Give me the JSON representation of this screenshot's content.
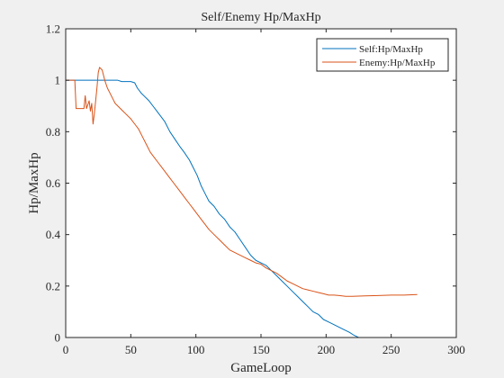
{
  "chart_data": {
    "type": "line",
    "title": "Self/Enemy Hp/MaxHp",
    "xlabel": "GameLoop",
    "ylabel": "Hp/MaxHp",
    "xlim": [
      0,
      300
    ],
    "ylim": [
      0,
      1.2
    ],
    "xticks": [
      "0",
      "50",
      "100",
      "150",
      "200",
      "250",
      "300"
    ],
    "yticks": [
      "0",
      "0.2",
      "0.4",
      "0.6",
      "0.8",
      "1",
      "1.2"
    ],
    "grid": false,
    "legend_position": "top-right",
    "series": [
      {
        "name": "Self:Hp/MaxHp",
        "color": "#0072BD",
        "points": [
          [
            0,
            1
          ],
          [
            10,
            1
          ],
          [
            20,
            1
          ],
          [
            30,
            1
          ],
          [
            40,
            1
          ],
          [
            43,
            0.995
          ],
          [
            50,
            0.995
          ],
          [
            53,
            0.99
          ],
          [
            55,
            0.97
          ],
          [
            58,
            0.95
          ],
          [
            60,
            0.94
          ],
          [
            64,
            0.92
          ],
          [
            67,
            0.9
          ],
          [
            70,
            0.88
          ],
          [
            73,
            0.86
          ],
          [
            76,
            0.84
          ],
          [
            80,
            0.8
          ],
          [
            84,
            0.77
          ],
          [
            88,
            0.74
          ],
          [
            91,
            0.72
          ],
          [
            95,
            0.69
          ],
          [
            98,
            0.66
          ],
          [
            101,
            0.63
          ],
          [
            104,
            0.59
          ],
          [
            107,
            0.56
          ],
          [
            110,
            0.53
          ],
          [
            114,
            0.51
          ],
          [
            118,
            0.48
          ],
          [
            122,
            0.46
          ],
          [
            126,
            0.43
          ],
          [
            130,
            0.41
          ],
          [
            134,
            0.38
          ],
          [
            138,
            0.35
          ],
          [
            142,
            0.32
          ],
          [
            146,
            0.3
          ],
          [
            150,
            0.29
          ],
          [
            154,
            0.28
          ],
          [
            158,
            0.26
          ],
          [
            162,
            0.24
          ],
          [
            166,
            0.22
          ],
          [
            170,
            0.2
          ],
          [
            174,
            0.18
          ],
          [
            178,
            0.16
          ],
          [
            182,
            0.14
          ],
          [
            186,
            0.12
          ],
          [
            190,
            0.1
          ],
          [
            194,
            0.09
          ],
          [
            198,
            0.07
          ],
          [
            202,
            0.06
          ],
          [
            206,
            0.05
          ],
          [
            210,
            0.04
          ],
          [
            214,
            0.03
          ],
          [
            218,
            0.02
          ],
          [
            221,
            0.01
          ],
          [
            223,
            0.005
          ],
          [
            225,
            0
          ],
          [
            245,
            0
          ],
          [
            270,
            0
          ]
        ]
      },
      {
        "name": "Enemy:Hp/MaxHp",
        "color": "#D95319",
        "points": [
          [
            0,
            1
          ],
          [
            7,
            1
          ],
          [
            8,
            0.89
          ],
          [
            14,
            0.89
          ],
          [
            15,
            0.94
          ],
          [
            16,
            0.89
          ],
          [
            18,
            0.92
          ],
          [
            19,
            0.88
          ],
          [
            20,
            0.91
          ],
          [
            21,
            0.83
          ],
          [
            22,
            0.87
          ],
          [
            23,
            0.92
          ],
          [
            24,
            0.97
          ],
          [
            25,
            1.03
          ],
          [
            26,
            1.05
          ],
          [
            28,
            1.04
          ],
          [
            30,
            1.0
          ],
          [
            32,
            0.97
          ],
          [
            34,
            0.95
          ],
          [
            36,
            0.93
          ],
          [
            38,
            0.91
          ],
          [
            40,
            0.9
          ],
          [
            42,
            0.89
          ],
          [
            44,
            0.88
          ],
          [
            46,
            0.87
          ],
          [
            48,
            0.86
          ],
          [
            50,
            0.85
          ],
          [
            53,
            0.83
          ],
          [
            56,
            0.81
          ],
          [
            59,
            0.78
          ],
          [
            62,
            0.75
          ],
          [
            65,
            0.72
          ],
          [
            68,
            0.7
          ],
          [
            71,
            0.68
          ],
          [
            74,
            0.66
          ],
          [
            77,
            0.64
          ],
          [
            80,
            0.62
          ],
          [
            83,
            0.6
          ],
          [
            86,
            0.58
          ],
          [
            89,
            0.56
          ],
          [
            92,
            0.54
          ],
          [
            95,
            0.52
          ],
          [
            98,
            0.5
          ],
          [
            101,
            0.48
          ],
          [
            104,
            0.46
          ],
          [
            107,
            0.44
          ],
          [
            110,
            0.42
          ],
          [
            114,
            0.4
          ],
          [
            118,
            0.38
          ],
          [
            122,
            0.36
          ],
          [
            126,
            0.34
          ],
          [
            130,
            0.33
          ],
          [
            134,
            0.32
          ],
          [
            138,
            0.31
          ],
          [
            142,
            0.3
          ],
          [
            146,
            0.29
          ],
          [
            150,
            0.285
          ],
          [
            154,
            0.27
          ],
          [
            158,
            0.26
          ],
          [
            162,
            0.25
          ],
          [
            166,
            0.235
          ],
          [
            170,
            0.22
          ],
          [
            174,
            0.21
          ],
          [
            178,
            0.2
          ],
          [
            182,
            0.19
          ],
          [
            186,
            0.185
          ],
          [
            190,
            0.18
          ],
          [
            194,
            0.175
          ],
          [
            198,
            0.17
          ],
          [
            202,
            0.165
          ],
          [
            206,
            0.165
          ],
          [
            210,
            0.163
          ],
          [
            215,
            0.16
          ],
          [
            220,
            0.16
          ],
          [
            230,
            0.162
          ],
          [
            240,
            0.163
          ],
          [
            250,
            0.165
          ],
          [
            260,
            0.165
          ],
          [
            270,
            0.167
          ]
        ]
      }
    ]
  }
}
